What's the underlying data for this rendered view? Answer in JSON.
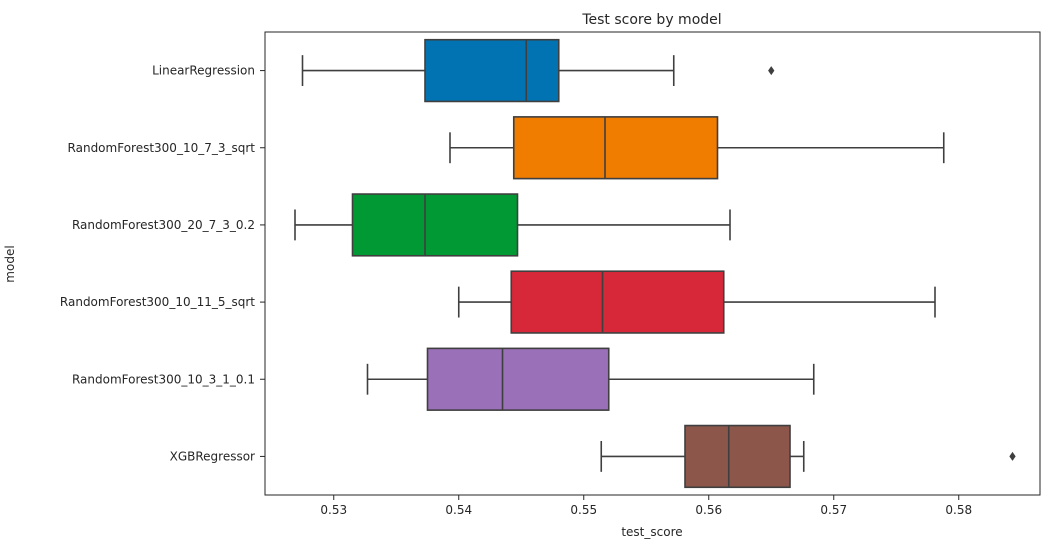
{
  "chart_data": {
    "type": "boxplot",
    "orientation": "horizontal",
    "title": "Test score by model",
    "xlabel": "test_score",
    "ylabel": "model",
    "xlim": [
      0.5245,
      0.5865
    ],
    "xticks": [
      0.53,
      0.54,
      0.55,
      0.56,
      0.57,
      0.58
    ],
    "xtick_labels": [
      "0.53",
      "0.54",
      "0.55",
      "0.56",
      "0.57",
      "0.58"
    ],
    "grid": false,
    "series": [
      {
        "label": "LinearRegression",
        "color": "#0173b2",
        "whisker_low": 0.5275,
        "q1": 0.5373,
        "median": 0.5454,
        "q3": 0.548,
        "whisker_high": 0.5572,
        "outliers": [
          0.565
        ]
      },
      {
        "label": "RandomForest300_10_7_3_sqrt",
        "color": "#f07c00",
        "whisker_low": 0.5393,
        "q1": 0.5444,
        "median": 0.5517,
        "q3": 0.5607,
        "whisker_high": 0.5788,
        "outliers": []
      },
      {
        "label": "RandomForest300_20_7_3_0.2",
        "color": "#009933",
        "whisker_low": 0.5269,
        "q1": 0.5315,
        "median": 0.5373,
        "q3": 0.5447,
        "whisker_high": 0.5617,
        "outliers": []
      },
      {
        "label": "RandomForest300_10_11_5_sqrt",
        "color": "#d62839",
        "whisker_low": 0.54,
        "q1": 0.5442,
        "median": 0.5515,
        "q3": 0.5612,
        "whisker_high": 0.5781,
        "outliers": []
      },
      {
        "label": "RandomForest300_10_3_1_0.1",
        "color": "#9a70b8",
        "whisker_low": 0.5327,
        "q1": 0.5375,
        "median": 0.5435,
        "q3": 0.552,
        "whisker_high": 0.5684,
        "outliers": []
      },
      {
        "label": "XGBRegressor",
        "color": "#8c564b",
        "whisker_low": 0.5514,
        "q1": 0.5581,
        "median": 0.5616,
        "q3": 0.5665,
        "whisker_high": 0.5676,
        "outliers": [
          0.5843
        ]
      }
    ],
    "line_color": "#3f3f3f"
  }
}
